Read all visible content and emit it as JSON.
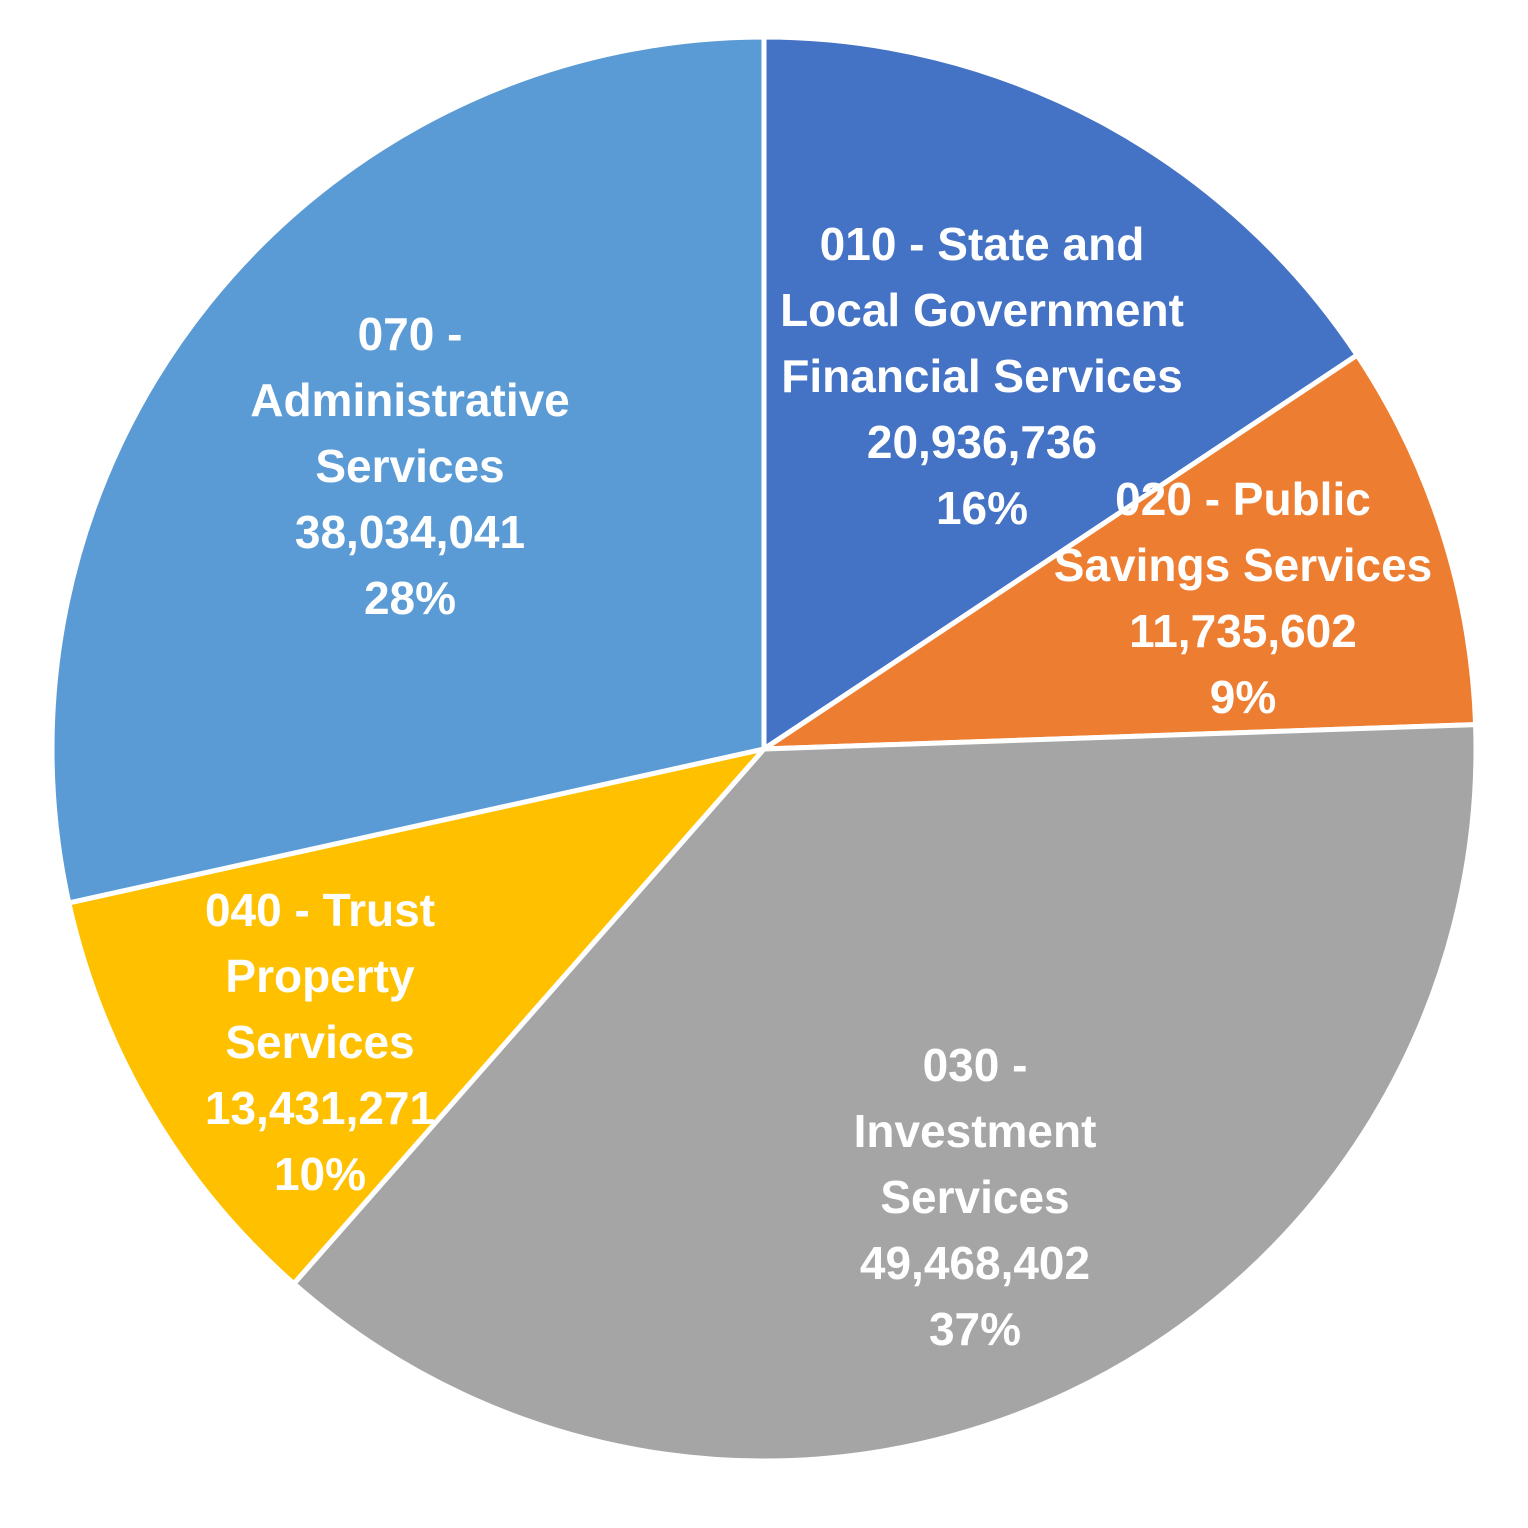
{
  "chart_data": {
    "type": "pie",
    "title": "",
    "start_angle_deg": 0,
    "direction": "clockwise",
    "legend": "none",
    "slices": [
      {
        "label_lines": [
          "010 - State and",
          "Local Government",
          "Financial Services"
        ],
        "value": 20936736,
        "value_label": "20,936,736",
        "percent_label": "16%",
        "color": "#4472C4"
      },
      {
        "label_lines": [
          "020 - Public",
          "Savings Services"
        ],
        "value": 11735602,
        "value_label": "11,735,602",
        "percent_label": "9%",
        "color": "#ED7D31"
      },
      {
        "label_lines": [
          "030 -",
          "Investment",
          "Services"
        ],
        "value": 49468402,
        "value_label": "49,468,402",
        "percent_label": "37%",
        "color": "#A5A5A5"
      },
      {
        "label_lines": [
          "040 - Trust",
          "Property",
          "Services"
        ],
        "value": 13431271,
        "value_label": "13,431,271",
        "percent_label": "10%",
        "color": "#FFC000"
      },
      {
        "label_lines": [
          "070 -",
          "Administrative",
          "Services"
        ],
        "value": 38034041,
        "value_label": "38,034,041",
        "percent_label": "28%",
        "color": "#5B9BD5"
      }
    ]
  }
}
